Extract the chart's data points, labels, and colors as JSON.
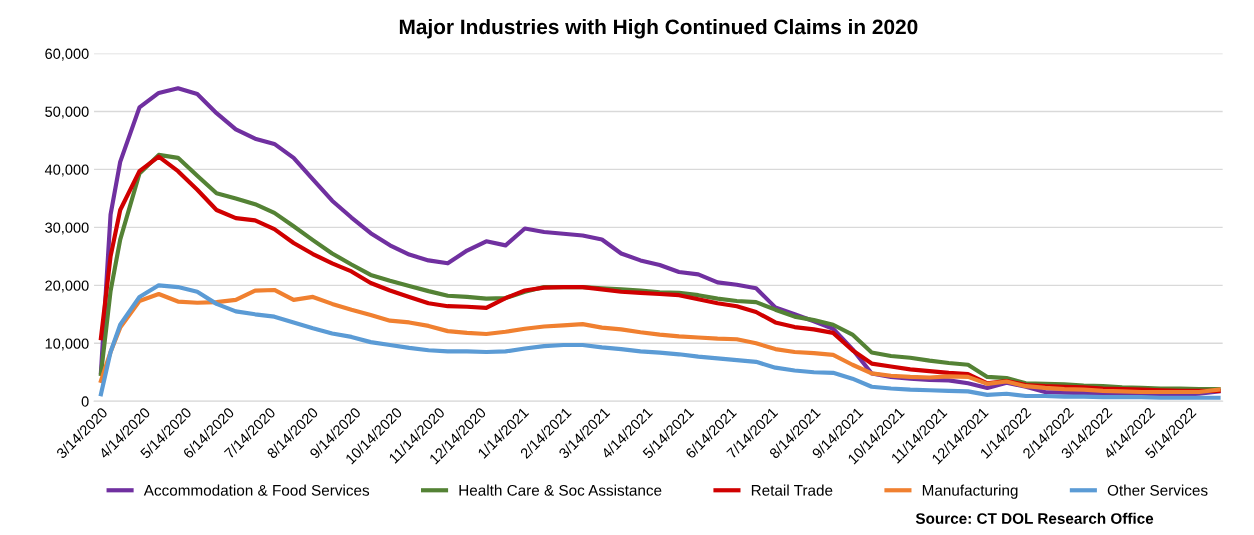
{
  "chart_data": {
    "type": "line",
    "title": "Major Industries with High Continued Claims in 2020",
    "x": [
      "2020-03-14",
      "2020-03-21",
      "2020-03-28",
      "2020-04-11",
      "2020-04-25",
      "2020-05-09",
      "2020-05-23",
      "2020-06-06",
      "2020-06-20",
      "2020-07-04",
      "2020-07-18",
      "2020-08-01",
      "2020-08-15",
      "2020-08-29",
      "2020-09-12",
      "2020-09-26",
      "2020-10-10",
      "2020-10-24",
      "2020-11-07",
      "2020-11-21",
      "2020-12-05",
      "2020-12-19",
      "2021-01-02",
      "2021-01-16",
      "2021-01-30",
      "2021-02-13",
      "2021-02-27",
      "2021-03-13",
      "2021-03-27",
      "2021-04-10",
      "2021-04-24",
      "2021-05-08",
      "2021-05-22",
      "2021-06-05",
      "2021-06-19",
      "2021-07-03",
      "2021-07-17",
      "2021-07-31",
      "2021-08-14",
      "2021-08-28",
      "2021-09-11",
      "2021-09-25",
      "2021-10-09",
      "2021-10-23",
      "2021-11-06",
      "2021-11-20",
      "2021-12-04",
      "2021-12-18",
      "2022-01-01",
      "2022-01-15",
      "2022-01-29",
      "2022-02-12",
      "2022-02-26",
      "2022-03-12",
      "2022-03-26",
      "2022-04-09",
      "2022-04-23",
      "2022-05-07",
      "2022-05-21",
      "2022-06-04"
    ],
    "series": [
      {
        "name": "Accommodation & Food Services",
        "color": "#7030a0",
        "values": [
          5000,
          32200,
          41300,
          50700,
          53200,
          54000,
          53000,
          49700,
          46900,
          45300,
          44400,
          42000,
          38300,
          34600,
          31700,
          29000,
          26900,
          25300,
          24300,
          23800,
          26000,
          27600,
          26900,
          29800,
          29200,
          28900,
          28600,
          27900,
          25500,
          24300,
          23500,
          22300,
          21900,
          20500,
          20100,
          19500,
          16200,
          15000,
          13800,
          12500,
          9000,
          4800,
          4200,
          3900,
          3700,
          3600,
          3100,
          2300,
          3200,
          2500,
          1600,
          1500,
          1400,
          1300,
          1300,
          1200,
          1200,
          1100,
          1300,
          1700
        ]
      },
      {
        "name": "Health Care & Soc Assistance",
        "color": "#548235",
        "values": [
          4700,
          19000,
          27900,
          39300,
          42500,
          42000,
          38900,
          35900,
          35000,
          34000,
          32500,
          30200,
          27800,
          25500,
          23600,
          21800,
          20800,
          19900,
          19000,
          18200,
          18000,
          17700,
          17800,
          18900,
          19700,
          19700,
          19700,
          19500,
          19300,
          19100,
          18800,
          18700,
          18300,
          17700,
          17300,
          17100,
          15800,
          14600,
          14000,
          13200,
          11500,
          8400,
          7800,
          7500,
          7000,
          6600,
          6300,
          4200,
          4000,
          3100,
          3000,
          2900,
          2700,
          2600,
          2400,
          2300,
          2200,
          2200,
          2100,
          2100
        ]
      },
      {
        "name": "Retail Trade",
        "color": "#d00000",
        "values": [
          10900,
          25000,
          33000,
          39700,
          42200,
          39700,
          36500,
          33000,
          31600,
          31200,
          29700,
          27300,
          25400,
          23800,
          22400,
          20400,
          19100,
          18000,
          16900,
          16400,
          16300,
          16100,
          17800,
          19100,
          19600,
          19700,
          19700,
          19300,
          18900,
          18700,
          18500,
          18300,
          17600,
          16900,
          16400,
          15400,
          13600,
          12800,
          12400,
          11800,
          8800,
          6500,
          6000,
          5500,
          5200,
          4900,
          4700,
          3100,
          3500,
          2800,
          2600,
          2500,
          2400,
          2200,
          2100,
          2000,
          1900,
          1800,
          1800,
          1800
        ]
      },
      {
        "name": "Manufacturing",
        "color": "#f08030",
        "values": [
          3500,
          8500,
          12700,
          17300,
          18500,
          17200,
          17000,
          17100,
          17500,
          19100,
          19200,
          17500,
          18000,
          16800,
          15800,
          14900,
          13900,
          13600,
          13000,
          12100,
          11800,
          11600,
          12000,
          12500,
          12900,
          13100,
          13300,
          12700,
          12400,
          11900,
          11500,
          11200,
          11000,
          10800,
          10700,
          10000,
          9000,
          8500,
          8300,
          8000,
          6300,
          4800,
          4400,
          4200,
          4100,
          4300,
          4200,
          3000,
          3400,
          2600,
          2300,
          2100,
          2000,
          1800,
          1700,
          1600,
          1600,
          1600,
          1600,
          2000
        ]
      },
      {
        "name": "Other Services",
        "color": "#5b9bd5",
        "values": [
          1200,
          8500,
          13200,
          18000,
          20000,
          19700,
          18900,
          16800,
          15500,
          15000,
          14600,
          13600,
          12600,
          11700,
          11100,
          10200,
          9700,
          9200,
          8800,
          8600,
          8600,
          8500,
          8600,
          9100,
          9500,
          9700,
          9700,
          9300,
          9000,
          8600,
          8400,
          8100,
          7700,
          7400,
          7100,
          6800,
          5800,
          5300,
          5000,
          4900,
          3900,
          2500,
          2200,
          2000,
          1900,
          1800,
          1700,
          1100,
          1300,
          900,
          900,
          800,
          800,
          700,
          700,
          700,
          600,
          600,
          600,
          600
        ]
      }
    ],
    "xlim": [
      "2020-03-09",
      "2022-06-07"
    ],
    "xticks": [
      {
        "value": "2020-03-14",
        "label": "3/14/2020"
      },
      {
        "value": "2020-04-14",
        "label": "4/14/2020"
      },
      {
        "value": "2020-05-14",
        "label": "5/14/2020"
      },
      {
        "value": "2020-06-14",
        "label": "6/14/2020"
      },
      {
        "value": "2020-07-14",
        "label": "7/14/2020"
      },
      {
        "value": "2020-08-14",
        "label": "8/14/2020"
      },
      {
        "value": "2020-09-14",
        "label": "9/14/2020"
      },
      {
        "value": "2020-10-14",
        "label": "10/14/2020"
      },
      {
        "value": "2020-11-14",
        "label": "11/14/2020"
      },
      {
        "value": "2020-12-14",
        "label": "12/14/2020"
      },
      {
        "value": "2021-01-14",
        "label": "1/14/2021"
      },
      {
        "value": "2021-02-14",
        "label": "2/14/2021"
      },
      {
        "value": "2021-03-14",
        "label": "3/14/2021"
      },
      {
        "value": "2021-04-14",
        "label": "4/14/2021"
      },
      {
        "value": "2021-05-14",
        "label": "5/14/2021"
      },
      {
        "value": "2021-06-14",
        "label": "6/14/2021"
      },
      {
        "value": "2021-07-14",
        "label": "7/14/2021"
      },
      {
        "value": "2021-08-14",
        "label": "8/14/2021"
      },
      {
        "value": "2021-09-14",
        "label": "9/14/2021"
      },
      {
        "value": "2021-10-14",
        "label": "10/14/2021"
      },
      {
        "value": "2021-11-14",
        "label": "11/14/2021"
      },
      {
        "value": "2021-12-14",
        "label": "12/14/2021"
      },
      {
        "value": "2022-01-14",
        "label": "1/14/2022"
      },
      {
        "value": "2022-02-14",
        "label": "2/14/2022"
      },
      {
        "value": "2022-03-14",
        "label": "3/14/2022"
      },
      {
        "value": "2022-04-14",
        "label": "4/14/2022"
      },
      {
        "value": "2022-05-14",
        "label": "5/14/2022"
      }
    ],
    "ylim": [
      0,
      60000
    ],
    "yticks": [
      {
        "value": 0,
        "label": "0"
      },
      {
        "value": 10000,
        "label": "10,000"
      },
      {
        "value": 20000,
        "label": "20,000"
      },
      {
        "value": 30000,
        "label": "30,000"
      },
      {
        "value": 40000,
        "label": "40,000"
      },
      {
        "value": 50000,
        "label": "50,000"
      },
      {
        "value": 60000,
        "label": "60,000"
      }
    ],
    "grid": "y",
    "legend": "bottom",
    "marker": "none",
    "line_style": "solid",
    "annotations": [
      "Source: CT DOL Research Office"
    ]
  }
}
